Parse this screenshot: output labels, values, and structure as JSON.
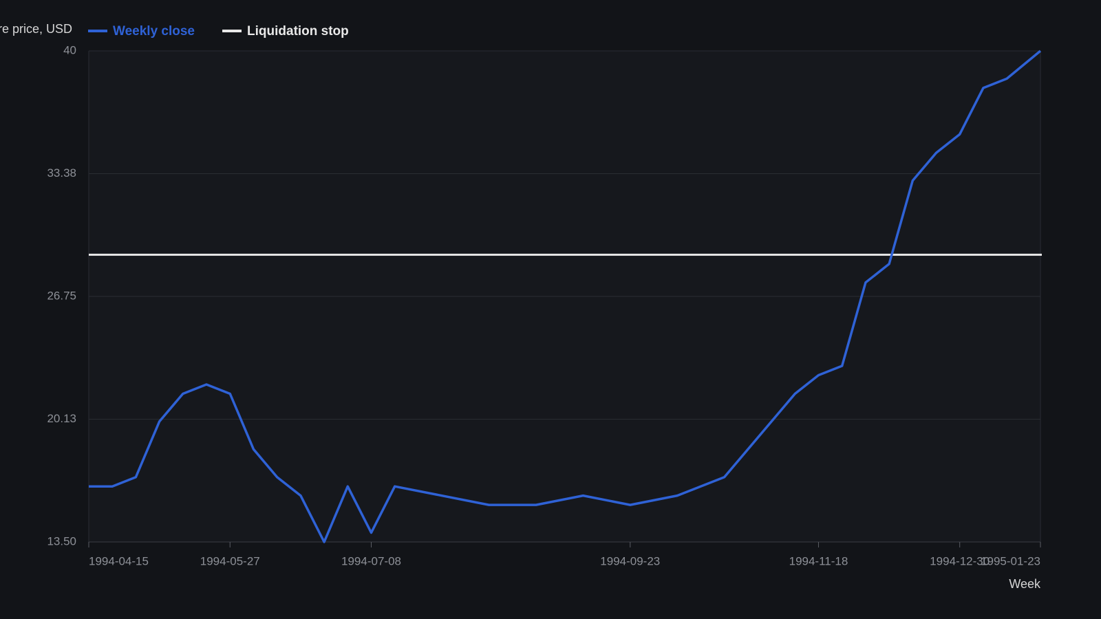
{
  "chart_data": {
    "type": "line",
    "y_label": "re price, USD",
    "x_label": "Week",
    "series": [
      {
        "name": "Weekly close",
        "color": "#2f62d6",
        "x": [
          "1994-04-15",
          "1994-04-22",
          "1994-04-29",
          "1994-05-06",
          "1994-05-13",
          "1994-05-20",
          "1994-05-27",
          "1994-06-03",
          "1994-06-10",
          "1994-06-17",
          "1994-06-24",
          "1994-07-01",
          "1994-07-08",
          "1994-07-15",
          "1994-08-12",
          "1994-08-26",
          "1994-09-09",
          "1994-09-23",
          "1994-10-07",
          "1994-10-21",
          "1994-11-11",
          "1994-11-18",
          "1994-11-25",
          "1994-12-02",
          "1994-12-09",
          "1994-12-16",
          "1994-12-23",
          "1994-12-30",
          "1995-01-06",
          "1995-01-13",
          "1995-01-23"
        ],
        "values": [
          16.5,
          16.5,
          17,
          20,
          21.5,
          22,
          21.5,
          18.5,
          17,
          16,
          13.5,
          16.5,
          14,
          16.5,
          15.5,
          15.5,
          16,
          15.5,
          16,
          17,
          21.5,
          22.5,
          23,
          27.5,
          28.5,
          33,
          34.5,
          35.5,
          38,
          38.5,
          40
        ]
      }
    ],
    "reference_line": {
      "name": "Liquidation stop",
      "color": "#e8e8e8",
      "value": 29
    },
    "xlim": [
      "1994-04-15",
      "1995-01-23"
    ],
    "xticks": [
      "1994-04-15",
      "1994-05-27",
      "1994-07-08",
      "1994-09-23",
      "1994-11-18",
      "1994-12-30",
      "1995-01-23"
    ],
    "ylim": [
      13.5,
      40
    ],
    "yticks": [
      {
        "value": 13.5,
        "label": "13.50"
      },
      {
        "value": 20.125,
        "label": "20.13"
      },
      26.75,
      {
        "value": 33.375,
        "label": "33.38"
      },
      40
    ],
    "grid": true
  }
}
